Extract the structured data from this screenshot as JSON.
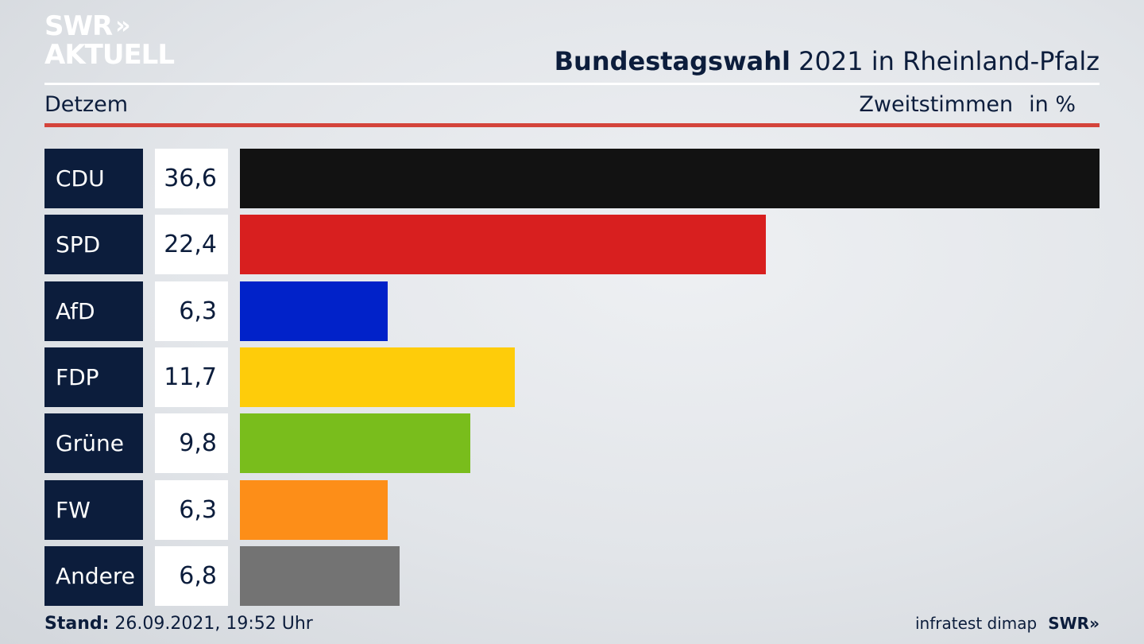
{
  "brand": {
    "logo_line1": "SWR",
    "logo_chevrons": "»",
    "logo_line2": "AKTUELL"
  },
  "header": {
    "title_bold": "Bundestagswahl",
    "title_rest": " 2021 in Rheinland-Pfalz",
    "district": "Detzem",
    "measure": "Zweitstimmen",
    "unit": "in %"
  },
  "footer": {
    "stand_label": "Stand:",
    "stand_value": " 26.09.2021, 19:52 Uhr",
    "source": "infratest dimap",
    "source_logo": "SWR»"
  },
  "chart_data": {
    "type": "bar",
    "orientation": "horizontal",
    "title": "Bundestagswahl 2021 in Rheinland-Pfalz",
    "subtitle": "Detzem",
    "xlabel": "",
    "ylabel": "",
    "unit": "in %",
    "grid": false,
    "legend": "none",
    "categories": [
      "CDU",
      "SPD",
      "AfD",
      "FDP",
      "Grüne",
      "FW",
      "Andere"
    ],
    "values": [
      36.6,
      22.4,
      6.3,
      11.7,
      9.8,
      6.3,
      6.8
    ],
    "value_labels": [
      "36,6",
      "22,4",
      "6,3",
      "11,7",
      "9,8",
      "6,3",
      "6,8"
    ],
    "colors": [
      "#121212",
      "#d81f1f",
      "#0122c9",
      "#fecc0a",
      "#79bd1c",
      "#fd8e18",
      "#737373"
    ]
  }
}
